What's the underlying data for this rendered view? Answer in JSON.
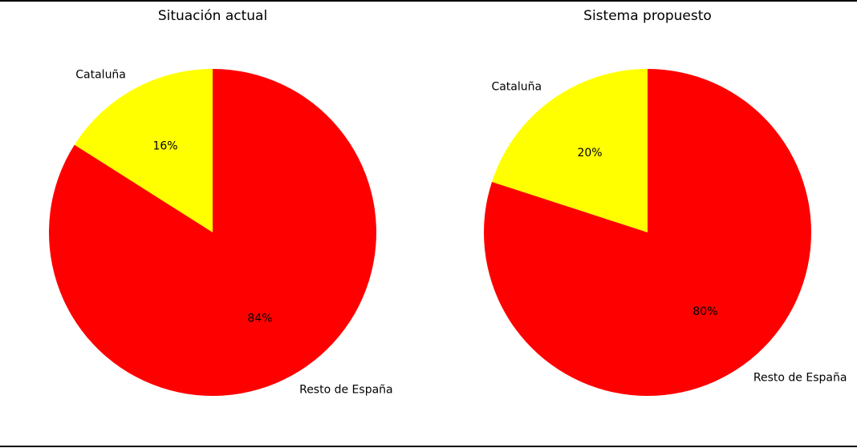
{
  "chart_data": [
    {
      "type": "pie",
      "title": "Situación actual",
      "categories": [
        "Cataluña",
        "Resto de España"
      ],
      "values": [
        16,
        84
      ],
      "value_labels": [
        "16%",
        "84%"
      ],
      "colors": [
        "#ffff00",
        "#ff0000"
      ],
      "start_angle": 90,
      "counterclockwise": true
    },
    {
      "type": "pie",
      "title": "Sistema propuesto",
      "categories": [
        "Cataluña",
        "Resto de España"
      ],
      "values": [
        20,
        80
      ],
      "value_labels": [
        "20%",
        "80%"
      ],
      "colors": [
        "#ffff00",
        "#ff0000"
      ],
      "start_angle": 90,
      "counterclockwise": true
    }
  ]
}
